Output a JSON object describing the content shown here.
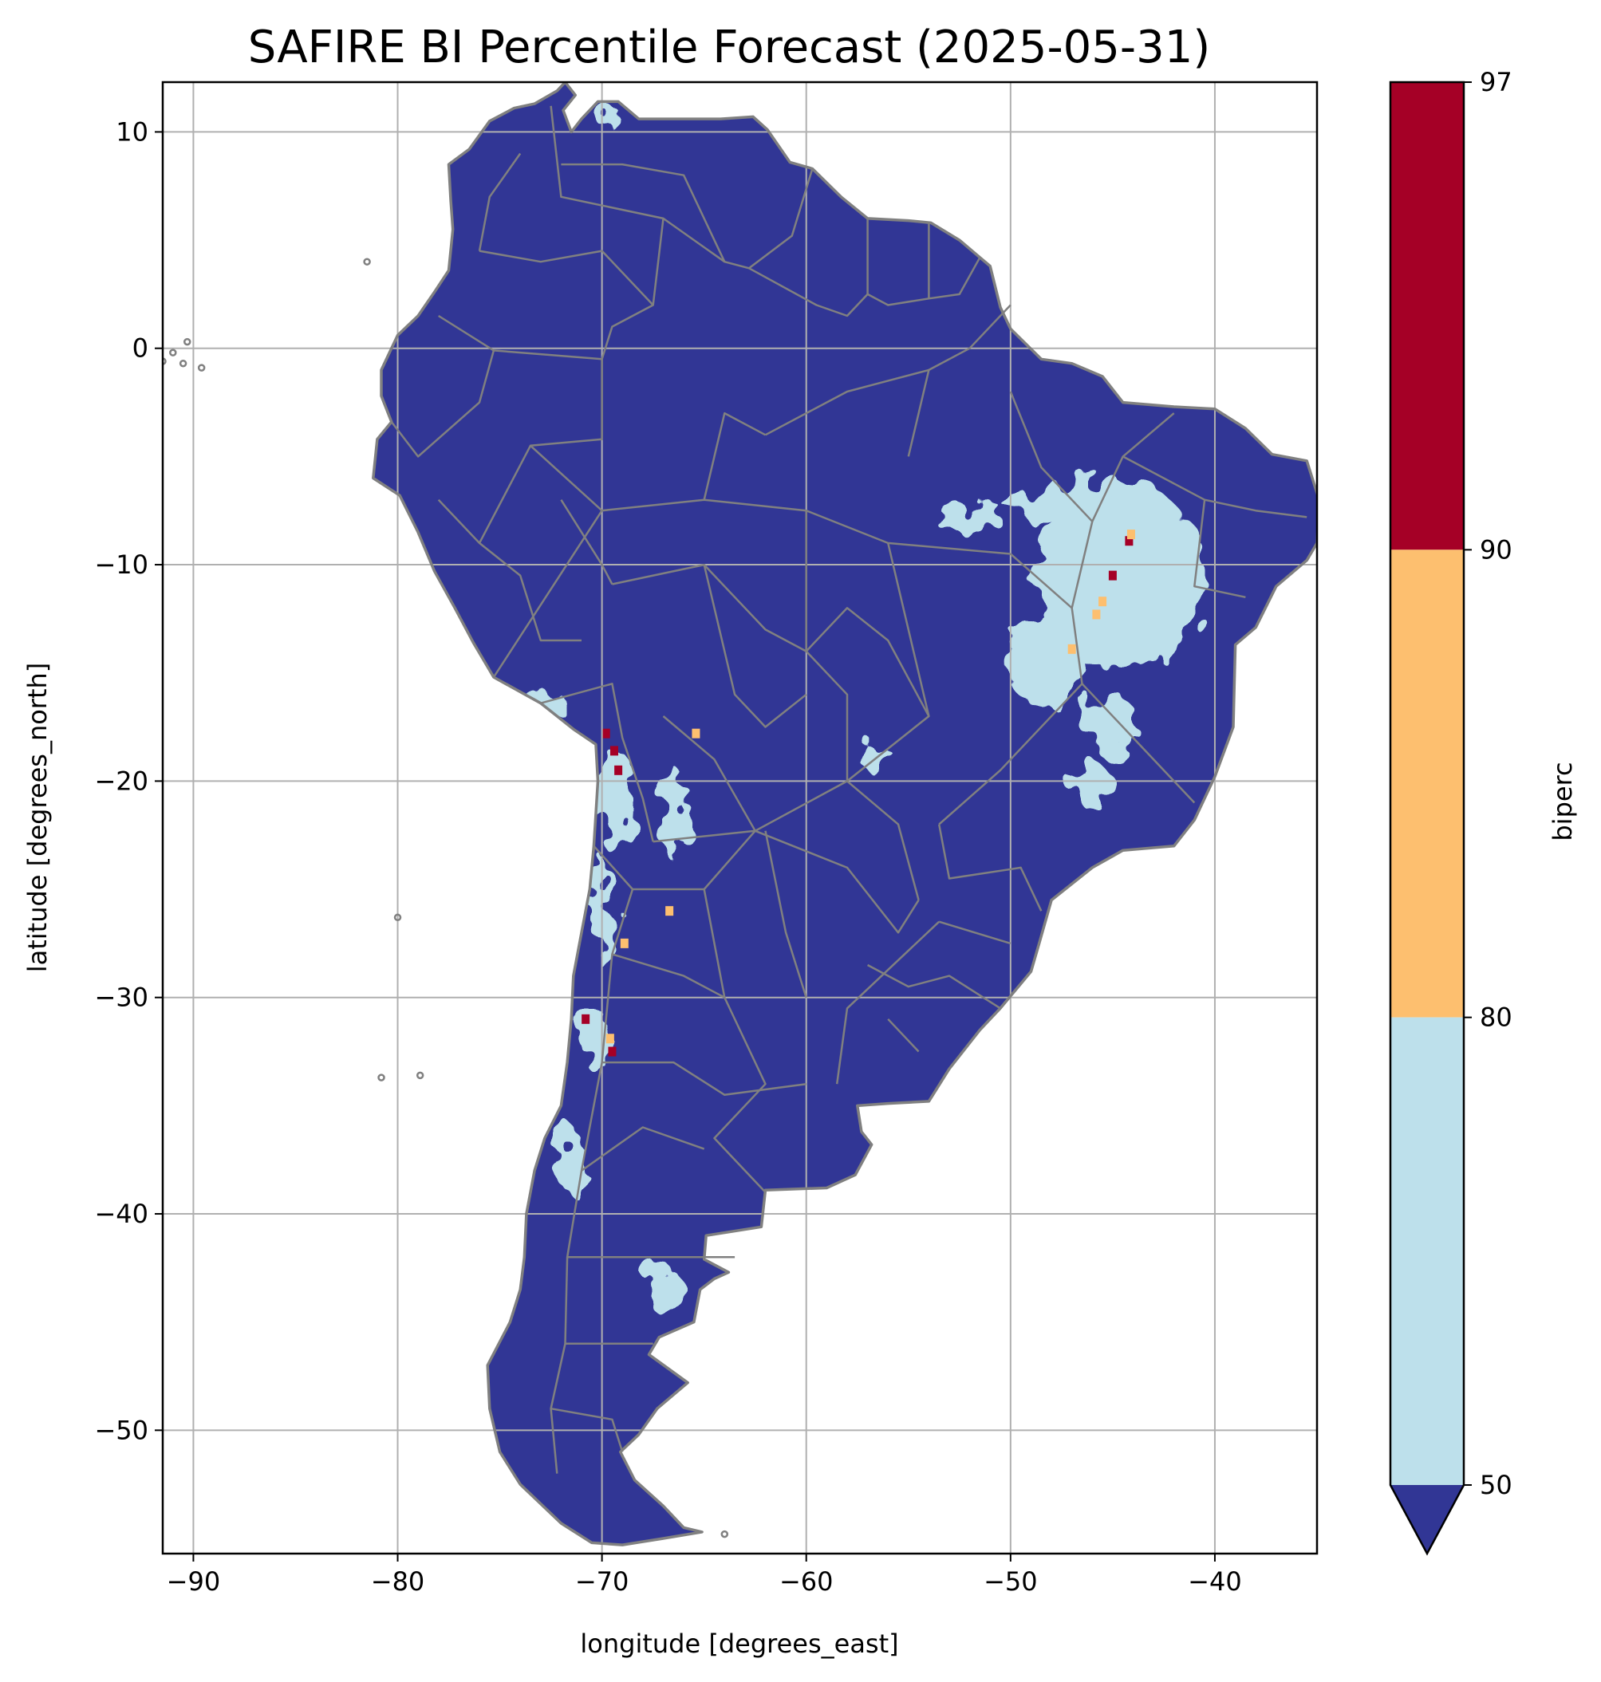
{
  "title": "SAFIRE BI Percentile Forecast (2025-05-31)",
  "map": {
    "xlabel": "longitude [degrees_east]",
    "ylabel": "latitude [degrees_north]",
    "xlim": [
      -91.5,
      -35
    ],
    "ylim": [
      -55.7,
      12.3
    ],
    "xticks": [
      -90,
      -80,
      -70,
      -60,
      -50,
      -40
    ],
    "yticks": [
      10,
      0,
      -10,
      -20,
      -30,
      -40,
      -50
    ],
    "xtick_labels": [
      "−90",
      "−80",
      "−70",
      "−60",
      "−50",
      "−40"
    ],
    "ytick_labels": [
      "10",
      "0",
      "−10",
      "−20",
      "−30",
      "−40",
      "−50"
    ],
    "grid": true,
    "boundary_color": "#808080",
    "land_color": "#313695"
  },
  "colorbar": {
    "label": "biperc",
    "ticks": [
      97,
      90,
      80,
      50
    ],
    "tick_labels": [
      "97",
      "90",
      "80",
      "50"
    ],
    "extend": "min",
    "bands": [
      {
        "from": 90,
        "to": 97,
        "color": "#a50026"
      },
      {
        "from": 80,
        "to": 90,
        "color": "#fdbf6f"
      },
      {
        "from": 50,
        "to": 80,
        "color": "#bde0eb"
      },
      {
        "from": null,
        "to": 50,
        "color": "#313695"
      }
    ]
  },
  "outline": [
    [
      -77.5,
      8.5
    ],
    [
      -76.5,
      9.2
    ],
    [
      -75.5,
      10.5
    ],
    [
      -74.3,
      11.1
    ],
    [
      -73.3,
      11.3
    ],
    [
      -72.2,
      11.9
    ],
    [
      -71.8,
      12.3
    ],
    [
      -71.3,
      11.7
    ],
    [
      -71.9,
      11.0
    ],
    [
      -71.5,
      10.0
    ],
    [
      -71.0,
      10.6
    ],
    [
      -70.2,
      11.4
    ],
    [
      -69.2,
      11.4
    ],
    [
      -68.2,
      10.6
    ],
    [
      -66.2,
      10.6
    ],
    [
      -64.2,
      10.6
    ],
    [
      -62.6,
      10.7
    ],
    [
      -61.9,
      10.1
    ],
    [
      -60.8,
      8.6
    ],
    [
      -59.7,
      8.3
    ],
    [
      -58.3,
      7.0
    ],
    [
      -57.0,
      6.0
    ],
    [
      -55.0,
      5.9
    ],
    [
      -53.9,
      5.8
    ],
    [
      -52.5,
      5.0
    ],
    [
      -51.5,
      4.2
    ],
    [
      -51.0,
      3.8
    ],
    [
      -50.5,
      1.9
    ],
    [
      -50.0,
      0.9
    ],
    [
      -48.5,
      -0.5
    ],
    [
      -47.0,
      -0.7
    ],
    [
      -45.5,
      -1.3
    ],
    [
      -44.5,
      -2.5
    ],
    [
      -42.0,
      -2.7
    ],
    [
      -40.0,
      -2.8
    ],
    [
      -38.5,
      -3.7
    ],
    [
      -37.2,
      -4.9
    ],
    [
      -35.5,
      -5.2
    ],
    [
      -34.9,
      -7.0
    ],
    [
      -35.0,
      -9.0
    ],
    [
      -35.5,
      -9.8
    ],
    [
      -37.0,
      -11.0
    ],
    [
      -38.0,
      -12.9
    ],
    [
      -39.0,
      -13.7
    ],
    [
      -39.1,
      -17.5
    ],
    [
      -40.0,
      -19.8
    ],
    [
      -41.0,
      -21.8
    ],
    [
      -42.0,
      -23.0
    ],
    [
      -44.5,
      -23.2
    ],
    [
      -46.0,
      -24.0
    ],
    [
      -48.0,
      -25.5
    ],
    [
      -48.6,
      -27.5
    ],
    [
      -49.0,
      -28.8
    ],
    [
      -50.5,
      -30.5
    ],
    [
      -51.5,
      -31.5
    ],
    [
      -53.0,
      -33.3
    ],
    [
      -54.0,
      -34.8
    ],
    [
      -56.0,
      -34.9
    ],
    [
      -57.5,
      -35.0
    ],
    [
      -57.3,
      -36.2
    ],
    [
      -56.8,
      -36.8
    ],
    [
      -57.6,
      -38.2
    ],
    [
      -59.0,
      -38.8
    ],
    [
      -62.0,
      -38.9
    ],
    [
      -62.2,
      -40.6
    ],
    [
      -64.9,
      -41.0
    ],
    [
      -65.0,
      -42.1
    ],
    [
      -63.8,
      -42.7
    ],
    [
      -64.5,
      -43.0
    ],
    [
      -65.2,
      -43.5
    ],
    [
      -65.5,
      -45.0
    ],
    [
      -67.2,
      -45.7
    ],
    [
      -67.7,
      -46.5
    ],
    [
      -65.8,
      -47.8
    ],
    [
      -67.3,
      -49.0
    ],
    [
      -68.2,
      -50.2
    ],
    [
      -69.1,
      -51.0
    ],
    [
      -68.4,
      -52.3
    ],
    [
      -67.0,
      -53.5
    ],
    [
      -66.0,
      -54.5
    ],
    [
      -65.1,
      -54.7
    ],
    [
      -67.0,
      -55.0
    ],
    [
      -69.0,
      -55.3
    ],
    [
      -70.5,
      -55.2
    ],
    [
      -72.0,
      -54.3
    ],
    [
      -74.0,
      -52.5
    ],
    [
      -75.0,
      -51.0
    ],
    [
      -75.5,
      -49.0
    ],
    [
      -75.6,
      -47.0
    ],
    [
      -74.5,
      -45.0
    ],
    [
      -74.0,
      -43.5
    ],
    [
      -73.8,
      -42.0
    ],
    [
      -73.7,
      -40.0
    ],
    [
      -73.3,
      -38.0
    ],
    [
      -72.8,
      -36.5
    ],
    [
      -72.0,
      -35.0
    ],
    [
      -71.7,
      -33.0
    ],
    [
      -71.5,
      -31.0
    ],
    [
      -71.4,
      -29.0
    ],
    [
      -71.0,
      -27.0
    ],
    [
      -70.6,
      -25.0
    ],
    [
      -70.4,
      -23.0
    ],
    [
      -70.2,
      -20.0
    ],
    [
      -70.3,
      -18.3
    ],
    [
      -71.4,
      -17.6
    ],
    [
      -73.0,
      -16.4
    ],
    [
      -75.3,
      -15.2
    ],
    [
      -76.3,
      -13.6
    ],
    [
      -77.2,
      -12.0
    ],
    [
      -78.2,
      -10.3
    ],
    [
      -79.0,
      -8.5
    ],
    [
      -79.9,
      -6.8
    ],
    [
      -81.2,
      -6.0
    ],
    [
      -81.0,
      -4.2
    ],
    [
      -80.3,
      -3.4
    ],
    [
      -80.8,
      -2.2
    ],
    [
      -80.8,
      -1.0
    ],
    [
      -80.0,
      0.6
    ],
    [
      -79.0,
      1.5
    ],
    [
      -78.2,
      2.6
    ],
    [
      -77.5,
      3.6
    ],
    [
      -77.3,
      5.5
    ],
    [
      -77.4,
      6.8
    ],
    [
      -77.5,
      8.5
    ]
  ],
  "light_patches": [
    {
      "center": [
        -44.7,
        -10.5
      ],
      "radius": [
        4.0,
        4.5
      ]
    },
    {
      "center": [
        -47.5,
        -7.2
      ],
      "radius": [
        2.8,
        0.8
      ]
    },
    {
      "center": [
        -48.3,
        -14.5
      ],
      "radius": [
        2.0,
        2.0
      ]
    },
    {
      "center": [
        -52.0,
        -7.8
      ],
      "radius": [
        1.8,
        0.8
      ]
    },
    {
      "center": [
        -46.0,
        -20.2
      ],
      "radius": [
        1.0,
        1.0
      ]
    },
    {
      "center": [
        -45.0,
        -17.5
      ],
      "radius": [
        1.2,
        1.5
      ]
    },
    {
      "center": [
        -69.3,
        -21.0
      ],
      "radius": [
        0.8,
        2.5
      ]
    },
    {
      "center": [
        -66.5,
        -21.5
      ],
      "radius": [
        0.6,
        2.2
      ]
    },
    {
      "center": [
        -70.0,
        -26.0
      ],
      "radius": [
        0.5,
        2.5
      ]
    },
    {
      "center": [
        -73.0,
        -16.3
      ],
      "radius": [
        1.2,
        0.5
      ]
    },
    {
      "center": [
        -70.3,
        -32.0
      ],
      "radius": [
        0.6,
        1.5
      ]
    },
    {
      "center": [
        -71.5,
        -37.5
      ],
      "radius": [
        0.7,
        1.5
      ]
    },
    {
      "center": [
        -67.0,
        -43.5
      ],
      "radius": [
        1.0,
        1.0
      ]
    },
    {
      "center": [
        -69.8,
        10.8
      ],
      "radius": [
        0.5,
        0.6
      ]
    },
    {
      "center": [
        -56.5,
        -19.0
      ],
      "radius": [
        0.9,
        0.5
      ]
    }
  ],
  "hot_cells": [
    {
      "lon": -69.8,
      "lat": -17.8,
      "color": "#a50026"
    },
    {
      "lon": -69.4,
      "lat": -18.6,
      "color": "#a50026"
    },
    {
      "lon": -69.2,
      "lat": -19.5,
      "color": "#a50026"
    },
    {
      "lon": -70.8,
      "lat": -31.0,
      "color": "#a50026"
    },
    {
      "lon": -69.5,
      "lat": -32.5,
      "color": "#a50026"
    },
    {
      "lon": -44.2,
      "lat": -8.9,
      "color": "#a50026"
    },
    {
      "lon": -45.0,
      "lat": -10.5,
      "color": "#a50026"
    },
    {
      "lon": -44.1,
      "lat": -8.6,
      "color": "#fdbf6f"
    },
    {
      "lon": -45.5,
      "lat": -11.7,
      "color": "#fdbf6f"
    },
    {
      "lon": -45.8,
      "lat": -12.3,
      "color": "#fdbf6f"
    },
    {
      "lon": -47.0,
      "lat": -13.9,
      "color": "#fdbf6f"
    },
    {
      "lon": -65.4,
      "lat": -17.8,
      "color": "#fdbf6f"
    },
    {
      "lon": -69.6,
      "lat": -31.9,
      "color": "#fdbf6f"
    },
    {
      "lon": -66.7,
      "lat": -26.0,
      "color": "#fdbf6f"
    },
    {
      "lon": -68.9,
      "lat": -27.5,
      "color": "#fdbf6f"
    }
  ],
  "borders": [
    [
      [
        -73.0,
        -16.4
      ],
      [
        -69.5,
        -15.5
      ],
      [
        -69.0,
        -18.0
      ],
      [
        -68.0,
        -20.8
      ],
      [
        -67.5,
        -22.8
      ]
    ],
    [
      [
        -69.5,
        -10.9
      ],
      [
        -65.0,
        -10.0
      ],
      [
        -62.0,
        -13.0
      ],
      [
        -60.0,
        -14.0
      ],
      [
        -58.0,
        -16.0
      ],
      [
        -58.0,
        -20.0
      ]
    ],
    [
      [
        -67.5,
        -22.8
      ],
      [
        -62.5,
        -22.3
      ],
      [
        -58.0,
        -20.0
      ]
    ],
    [
      [
        -62.5,
        -22.3
      ],
      [
        -58.0,
        -24.0
      ],
      [
        -55.5,
        -27.0
      ],
      [
        -54.5,
        -25.5
      ]
    ],
    [
      [
        -58.0,
        -20.0
      ],
      [
        -55.5,
        -22.0
      ],
      [
        -54.5,
        -25.5
      ]
    ],
    [
      [
        -53.5,
        -26.5
      ],
      [
        -58.0,
        -30.5
      ],
      [
        -58.5,
        -34.0
      ]
    ],
    [
      [
        -70.4,
        -23.0
      ],
      [
        -68.5,
        -25.0
      ],
      [
        -69.5,
        -28.0
      ],
      [
        -70.0,
        -33.0
      ],
      [
        -71.0,
        -38.0
      ],
      [
        -71.7,
        -42.0
      ],
      [
        -71.8,
        -46.0
      ],
      [
        -72.5,
        -49.0
      ],
      [
        -72.2,
        -52.0
      ]
    ],
    [
      [
        -75.3,
        -15.2
      ],
      [
        -70.0,
        -7.5
      ],
      [
        -73.5,
        -4.5
      ],
      [
        -70.0,
        -4.2
      ],
      [
        -70.0,
        -0.5
      ],
      [
        -69.5,
        1.0
      ],
      [
        -67.5,
        2.0
      ],
      [
        -67.0,
        6.0
      ],
      [
        -72.0,
        7.0
      ],
      [
        -72.5,
        11.2
      ]
    ],
    [
      [
        -80.3,
        -3.4
      ],
      [
        -79.0,
        -5.0
      ],
      [
        -76.0,
        -2.5
      ],
      [
        -75.3,
        -0.1
      ],
      [
        -78.0,
        1.5
      ]
    ],
    [
      [
        -75.3,
        -0.1
      ],
      [
        -70.0,
        -0.5
      ]
    ],
    [
      [
        -67.0,
        6.0
      ],
      [
        -64.0,
        4.0
      ],
      [
        -62.8,
        3.7
      ],
      [
        -60.7,
        5.2
      ],
      [
        -59.7,
        8.3
      ]
    ],
    [
      [
        -62.8,
        3.7
      ],
      [
        -59.5,
        2.0
      ],
      [
        -58.0,
        1.5
      ],
      [
        -57.0,
        2.5
      ],
      [
        -56.0,
        2.0
      ],
      [
        -54.0,
        2.3
      ],
      [
        -52.5,
        2.5
      ],
      [
        -51.5,
        4.2
      ]
    ],
    [
      [
        -57.0,
        2.5
      ],
      [
        -57.0,
        6.0
      ]
    ],
    [
      [
        -54.0,
        2.3
      ],
      [
        -54.0,
        5.8
      ]
    ],
    [
      [
        -70.0,
        -7.5
      ],
      [
        -65.0,
        -7.0
      ],
      [
        -60.0,
        -7.5
      ],
      [
        -56.0,
        -9.0
      ],
      [
        -50.0,
        -9.5
      ]
    ],
    [
      [
        -60.0,
        -7.5
      ],
      [
        -60.0,
        -14.0
      ]
    ],
    [
      [
        -56.0,
        -9.0
      ],
      [
        -54.0,
        -17.0
      ],
      [
        -58.0,
        -20.0
      ]
    ],
    [
      [
        -50.0,
        -9.5
      ],
      [
        -47.0,
        -12.0
      ],
      [
        -46.5,
        -15.5
      ],
      [
        -50.5,
        -19.5
      ],
      [
        -53.5,
        -22.0
      ]
    ],
    [
      [
        -46.5,
        -15.5
      ],
      [
        -44.0,
        -18.0
      ],
      [
        -41.0,
        -21.0
      ]
    ],
    [
      [
        -47.0,
        -12.0
      ],
      [
        -46.0,
        -8.0
      ],
      [
        -44.5,
        -5.0
      ],
      [
        -42.0,
        -3.0
      ]
    ],
    [
      [
        -46.0,
        -8.0
      ],
      [
        -48.5,
        -5.5
      ],
      [
        -50.0,
        -2.0
      ]
    ],
    [
      [
        -44.5,
        -5.0
      ],
      [
        -40.5,
        -7.0
      ],
      [
        -38.0,
        -7.5
      ],
      [
        -35.5,
        -7.8
      ]
    ],
    [
      [
        -40.5,
        -7.0
      ],
      [
        -41.0,
        -11.0
      ],
      [
        -38.5,
        -11.5
      ]
    ],
    [
      [
        -53.5,
        -22.0
      ],
      [
        -53.0,
        -24.5
      ],
      [
        -49.5,
        -24.0
      ],
      [
        -48.5,
        -26.0
      ]
    ],
    [
      [
        -53.5,
        -26.5
      ],
      [
        -50.0,
        -27.5
      ]
    ],
    [
      [
        -62.0,
        -22.3
      ],
      [
        -61.0,
        -27.0
      ],
      [
        -60.0,
        -30.0
      ]
    ],
    [
      [
        -65.0,
        -25.0
      ],
      [
        -64.0,
        -30.0
      ],
      [
        -62.0,
        -34.0
      ],
      [
        -64.5,
        -36.5
      ],
      [
        -62.0,
        -39.0
      ]
    ],
    [
      [
        -68.5,
        -25.0
      ],
      [
        -65.0,
        -25.0
      ],
      [
        -62.5,
        -22.3
      ]
    ],
    [
      [
        -69.5,
        -28.0
      ],
      [
        -66.0,
        -29.0
      ],
      [
        -64.0,
        -30.0
      ]
    ],
    [
      [
        -70.0,
        -33.0
      ],
      [
        -66.5,
        -33.0
      ],
      [
        -64.0,
        -34.5
      ],
      [
        -60.0,
        -34.0
      ]
    ],
    [
      [
        -71.0,
        -38.0
      ],
      [
        -68.0,
        -36.0
      ],
      [
        -65.0,
        -37.0
      ]
    ],
    [
      [
        -71.7,
        -42.0
      ],
      [
        -67.0,
        -42.0
      ],
      [
        -63.5,
        -42.0
      ]
    ],
    [
      [
        -71.8,
        -46.0
      ],
      [
        -67.5,
        -46.0
      ]
    ],
    [
      [
        -72.0,
        -7.0
      ],
      [
        -70.0,
        -10.0
      ],
      [
        -69.5,
        -10.9
      ]
    ],
    [
      [
        -78.0,
        -7.0
      ],
      [
        -76.0,
        -9.0
      ],
      [
        -74.0,
        -10.5
      ],
      [
        -73.0,
        -13.5
      ],
      [
        -71.0,
        -13.5
      ]
    ],
    [
      [
        -76.0,
        -9.0
      ],
      [
        -73.5,
        -4.5
      ]
    ],
    [
      [
        -64.0,
        4.0
      ],
      [
        -66.0,
        8.0
      ],
      [
        -69.0,
        8.5
      ],
      [
        -72.0,
        8.5
      ]
    ],
    [
      [
        -76.0,
        4.5
      ],
      [
        -73.0,
        4.0
      ],
      [
        -70.0,
        4.5
      ],
      [
        -67.5,
        2.0
      ]
    ],
    [
      [
        -76.0,
        4.5
      ],
      [
        -75.5,
        7.0
      ],
      [
        -74.0,
        9.0
      ]
    ],
    [
      [
        -60.0,
        -14.0
      ],
      [
        -58.0,
        -12.0
      ],
      [
        -56.0,
        -13.5
      ],
      [
        -54.0,
        -17.0
      ]
    ],
    [
      [
        -65.0,
        -10.0
      ],
      [
        -63.5,
        -16.0
      ],
      [
        -62.0,
        -17.5
      ],
      [
        -60.0,
        -16.0
      ]
    ],
    [
      [
        -67.0,
        -17.0
      ],
      [
        -64.5,
        -19.0
      ],
      [
        -62.5,
        -22.3
      ]
    ],
    [
      [
        -55.0,
        -5.0
      ],
      [
        -54.0,
        -1.0
      ],
      [
        -52.0,
        0.0
      ],
      [
        -50.0,
        2.0
      ]
    ],
    [
      [
        -62.0,
        -4.0
      ],
      [
        -58.0,
        -2.0
      ],
      [
        -56.0,
        -1.5
      ],
      [
        -54.0,
        -1.0
      ]
    ],
    [
      [
        -65.0,
        -7.0
      ],
      [
        -64.0,
        -3.0
      ],
      [
        -62.0,
        -4.0
      ]
    ],
    [
      [
        -57.0,
        -28.5
      ],
      [
        -55.0,
        -29.5
      ],
      [
        -53.0,
        -29.0
      ],
      [
        -50.5,
        -30.5
      ]
    ],
    [
      [
        -56.0,
        -31.0
      ],
      [
        -54.5,
        -32.5
      ]
    ],
    [
      [
        -72.5,
        -49.0
      ],
      [
        -69.5,
        -49.5
      ],
      [
        -69.0,
        -51.0
      ]
    ]
  ],
  "islands": [
    [
      -91.5,
      -0.6
    ],
    [
      -90.5,
      -0.7
    ],
    [
      -90.3,
      0.3
    ],
    [
      -89.6,
      -0.9
    ],
    [
      -91.0,
      -0.2
    ],
    [
      -81.5,
      4.0
    ],
    [
      -80.0,
      -26.3
    ],
    [
      -78.9,
      -33.6
    ],
    [
      -80.8,
      -33.7
    ],
    [
      -64.0,
      -54.8
    ]
  ]
}
